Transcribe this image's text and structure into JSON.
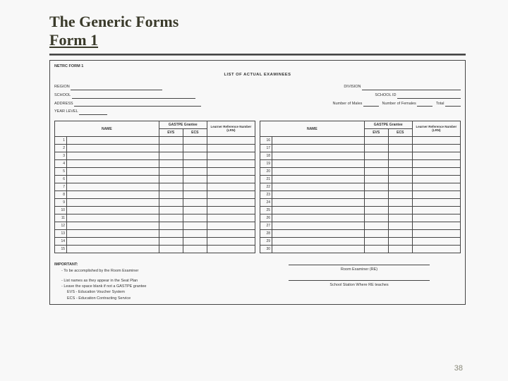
{
  "title": {
    "line1": "The Generic Forms",
    "line2": "Form 1"
  },
  "form": {
    "id": "NETRC FORM 1",
    "heading": "LIST OF ACTUAL EXAMINEES",
    "fields": {
      "region": "REGION",
      "division": "DIVISION",
      "school": "SCHOOL",
      "school_id": "SCHOOL ID",
      "address": "ADDRESS",
      "males": "Number of Males",
      "females": "Number of Females",
      "total": "Total",
      "year_level": "YEAR LEVEL"
    },
    "table": {
      "name": "NAME",
      "gastpe": "GASTPE Grantee",
      "evs": "EVS",
      "ecs": "ECS",
      "lrn": "Learner Reference Number (LRN)",
      "left_rows": [
        "1",
        "2",
        "3",
        "4",
        "5",
        "6",
        "7",
        "8",
        "9",
        "10",
        "11",
        "12",
        "13",
        "14",
        "15"
      ],
      "right_rows": [
        "16",
        "17",
        "18",
        "19",
        "20",
        "21",
        "22",
        "23",
        "24",
        "25",
        "26",
        "27",
        "28",
        "29",
        "30"
      ]
    },
    "important": {
      "title": "IMPORTANT:",
      "line1": "- To be accomplished by the Room Examiner",
      "line2": "- List names as they appear in the Seat Plan",
      "line3": "- Leave the space blank if not a GASTPE grantee",
      "line4": "EVS - Education Voucher System",
      "line5": "ECS - Education Contracting Service"
    },
    "signature": {
      "re": "Room Examiner (RE)",
      "station": "School Station Where RE teaches"
    }
  },
  "pageNumber": "38",
  "colors": {
    "title": "#3a3a2a",
    "border": "#444444",
    "pagenum": "#8a8a7a",
    "bg": "#f8f8f8"
  }
}
